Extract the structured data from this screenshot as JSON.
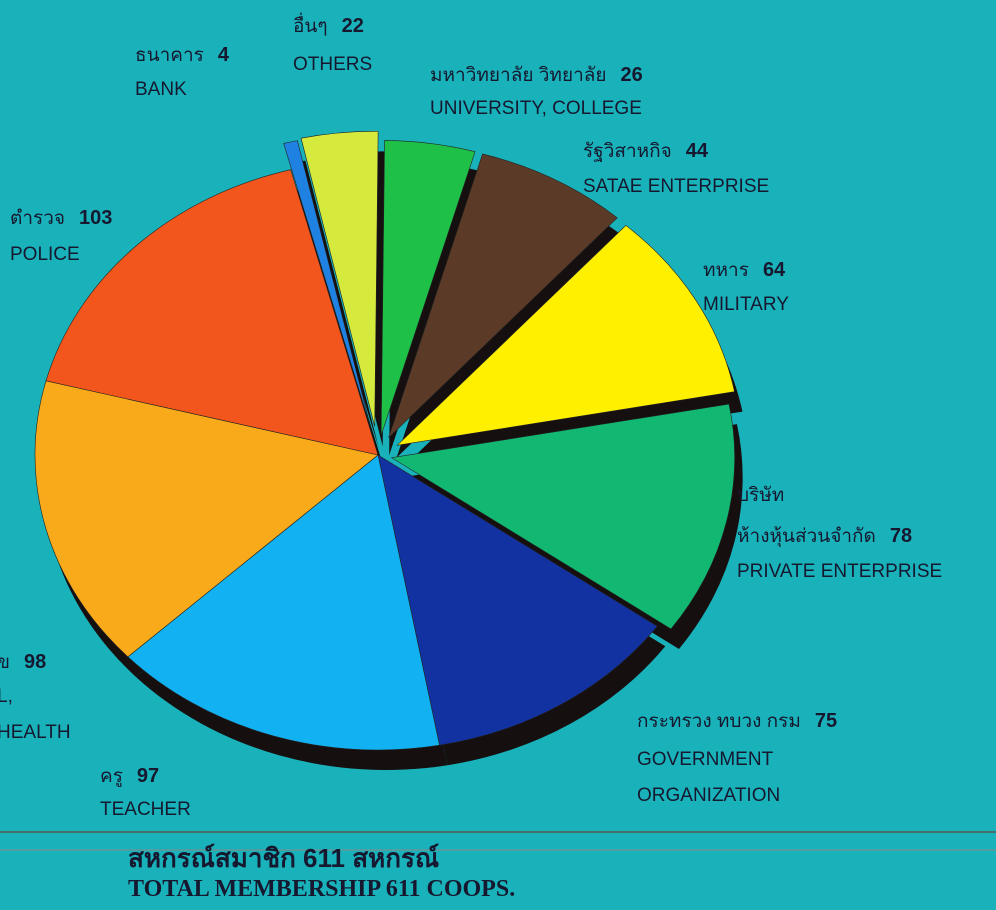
{
  "chart_data": {
    "type": "pie",
    "categories": [
      "มหาวิทยาลัย วิทยาลัย",
      "รัฐวิสาหกิจ",
      "ทหาร",
      "ห้างหุ้นส่วนจำกัด",
      "กระทรวง ทบวง กรม",
      "ครู",
      "ข",
      "ตำรวจ",
      "ธนาคาร",
      "อื่นๆ"
    ],
    "category_prefix": {
      "3": "บริษัท"
    },
    "english_labels": [
      [
        "UNIVERSITY, COLLEGE"
      ],
      [
        "SATAE ENTERPRISE"
      ],
      [
        "MILITARY"
      ],
      [
        "PRIVATE ENTERPRISE"
      ],
      [
        "GOVERNMENT",
        "ORGANIZATION"
      ],
      [
        "TEACHER"
      ],
      [
        "L,",
        "HEALTH"
      ],
      [
        "POLICE"
      ],
      [
        "BANK"
      ],
      [
        "OTHERS"
      ]
    ],
    "values": [
      26,
      44,
      64,
      78,
      75,
      97,
      98,
      103,
      4,
      22
    ],
    "colors": [
      "#1fc048",
      "#5b3b27",
      "#fff000",
      "#12b872",
      "#1232a2",
      "#12b2f2",
      "#f8aa1a",
      "#f2561c",
      "#1f82e2",
      "#d6ea3e"
    ],
    "total_label_th": "สหกรณ์สมาชิก 611 สหกรณ์",
    "total_label_en": "TOTAL MEMBERSHIP 611 COOPS."
  }
}
